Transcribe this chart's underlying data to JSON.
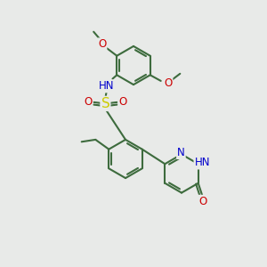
{
  "background_color": "#e8eae8",
  "bond_color": "#3d6b3d",
  "bond_width": 1.5,
  "atom_colors": {
    "N": "#0000cc",
    "O": "#cc0000",
    "S": "#cccc00",
    "H": "#7a9a9a",
    "C": "#3d6b3d"
  },
  "font_size": 8.5
}
